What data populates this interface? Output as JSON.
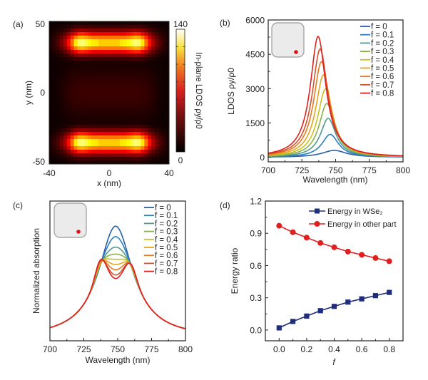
{
  "chart_data": [
    {
      "panel": "(a)",
      "type": "heatmap",
      "xlabel": "x (nm)",
      "ylabel": "y (nm)",
      "xlim": [
        -40,
        40
      ],
      "ylim": [
        -50,
        50
      ],
      "xticks": [
        "-40",
        "0",
        "40"
      ],
      "yticks": [
        "-50",
        "0",
        "50"
      ],
      "colorbar": {
        "label": "In-plane LDOS ρy/ρ0",
        "min": 0,
        "max": 140,
        "min_label": "0",
        "max_label": "140",
        "colormap": "hot"
      },
      "description": "Two bright horizontal bands near y=±35 nm spanning x≈-30..30 nm with peaks (~140) near x=±20 nm; dark center region",
      "hotspots": [
        {
          "x": -20,
          "y": 35,
          "value": 140
        },
        {
          "x": 20,
          "y": 35,
          "value": 140
        },
        {
          "x": -20,
          "y": -35,
          "value": 140
        },
        {
          "x": 20,
          "y": -35,
          "value": 140
        }
      ]
    },
    {
      "panel": "(b)",
      "type": "line",
      "xlabel": "Wavelength (nm)",
      "ylabel": "LDOS ρy/ρ0",
      "xlim": [
        700,
        800
      ],
      "ylim": [
        -200,
        6000
      ],
      "xticks": [
        "700",
        "725",
        "750",
        "775",
        "800"
      ],
      "yticks": [
        "0",
        "1500",
        "3000",
        "4500",
        "6000"
      ],
      "legend_position": "top-right",
      "series": [
        {
          "name": "f = 0",
          "color": "#2a5fa8",
          "peak_x": 749,
          "peak_y": 300,
          "width": 22,
          "base": 60
        },
        {
          "name": "f = 0.1",
          "color": "#2f7fbf",
          "peak_x": 746,
          "peak_y": 1000,
          "width": 15,
          "base": 80
        },
        {
          "name": "f = 0.2",
          "color": "#4f9a8c",
          "peak_x": 744.5,
          "peak_y": 1700,
          "width": 14,
          "base": 100
        },
        {
          "name": "f = 0.3",
          "color": "#8ab04a",
          "peak_x": 743.5,
          "peak_y": 2350,
          "width": 14,
          "base": 120
        },
        {
          "name": "f = 0.4",
          "color": "#c8c21e",
          "peak_x": 742.5,
          "peak_y": 2980,
          "width": 14,
          "base": 140
        },
        {
          "name": "f = 0.5",
          "color": "#e9a21c",
          "peak_x": 741,
          "peak_y": 3600,
          "width": 14,
          "base": 160
        },
        {
          "name": "f = 0.6",
          "color": "#e57a22",
          "peak_x": 739.5,
          "peak_y": 4180,
          "width": 14,
          "base": 180
        },
        {
          "name": "f = 0.7",
          "color": "#d4502a",
          "peak_x": 738.5,
          "peak_y": 4730,
          "width": 14,
          "base": 200
        },
        {
          "name": "f = 0.8",
          "color": "#e02020",
          "peak_x": 737,
          "peak_y": 5280,
          "width": 14,
          "base": 220
        }
      ],
      "inset": "rounded square with red dot near bottom-right corner"
    },
    {
      "panel": "(c)",
      "type": "line",
      "xlabel": "Wavelength (nm)",
      "ylabel": "Normalized absorption",
      "xlim": [
        700,
        800
      ],
      "ylim": [
        0,
        1
      ],
      "xticks": [
        "700",
        "725",
        "750",
        "775",
        "800"
      ],
      "yticks": [],
      "legend_position": "top-right",
      "series": [
        {
          "name": "f = 0",
          "color": "#2a5fa8",
          "dip": 0.0
        },
        {
          "name": "f = 0.1",
          "color": "#2f7fbf",
          "dip": 0.1
        },
        {
          "name": "f = 0.2",
          "color": "#4f9a8c",
          "dip": 0.2
        },
        {
          "name": "f = 0.3",
          "color": "#8ab04a",
          "dip": 0.3
        },
        {
          "name": "f = 0.4",
          "color": "#c8c21e",
          "dip": 0.4
        },
        {
          "name": "f = 0.5",
          "color": "#e9a21c",
          "dip": 0.5
        },
        {
          "name": "f = 0.6",
          "color": "#e57a22",
          "dip": 0.6
        },
        {
          "name": "f = 0.7",
          "color": "#d4502a",
          "dip": 0.7
        },
        {
          "name": "f = 0.8",
          "color": "#e02020",
          "dip": 0.8
        }
      ],
      "peak_values": [
        0.8,
        0.74,
        0.68,
        0.64,
        0.61,
        0.58,
        0.55,
        0.52,
        0.5
      ],
      "inset": "rounded square with red dot near bottom-right corner"
    },
    {
      "panel": "(d)",
      "type": "line",
      "xlabel": "f",
      "ylabel": "Energy ratio",
      "xlim": [
        -0.1,
        0.9
      ],
      "ylim": [
        -0.1,
        1.2
      ],
      "xticks": [
        "0.0",
        "0.2",
        "0.4",
        "0.6",
        "0.8"
      ],
      "yticks": [
        "0.0",
        "0.3",
        "0.6",
        "0.9",
        "1.2"
      ],
      "legend_position": "top-right",
      "x": [
        0.0,
        0.1,
        0.2,
        0.3,
        0.4,
        0.5,
        0.6,
        0.7,
        0.8
      ],
      "series": [
        {
          "name": "Energy in WSe₂",
          "color": "#1f2d7a",
          "marker": "square",
          "values": [
            0.02,
            0.08,
            0.13,
            0.18,
            0.22,
            0.26,
            0.29,
            0.32,
            0.35
          ]
        },
        {
          "name": "Energy in other part",
          "color": "#e02020",
          "marker": "circle",
          "values": [
            0.97,
            0.91,
            0.86,
            0.81,
            0.77,
            0.73,
            0.7,
            0.67,
            0.64
          ]
        }
      ]
    }
  ],
  "panel_labels": [
    "(a)",
    "(b)",
    "(c)",
    "(d)"
  ]
}
